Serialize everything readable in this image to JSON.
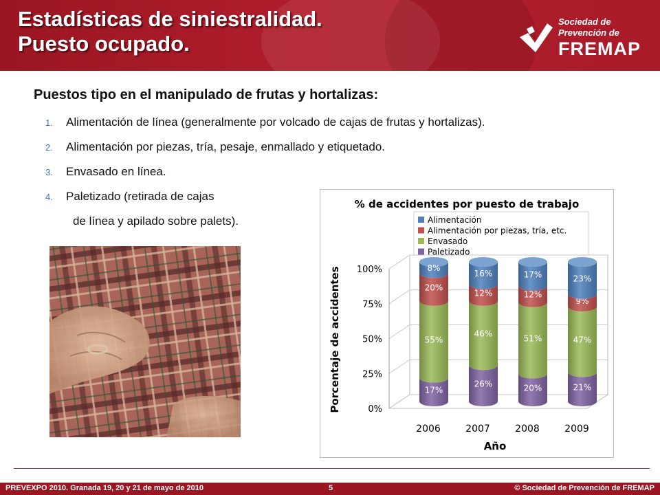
{
  "header": {
    "title_line1": "Estadísticas de siniestralidad.",
    "title_line2": "Puesto ocupado.",
    "logo_line1": "Sociedad de",
    "logo_line2": "Prevención de",
    "logo_line3": "FREMAP",
    "logo_icon": "fremap-check-mark-icon"
  },
  "content": {
    "subtitle": "Puestos tipo en el manipulado de frutas y hortalizas:",
    "items": [
      {
        "num": "1.",
        "text": "Alimentación de línea (generalmente por volcado de cajas de frutas y hortalizas)."
      },
      {
        "num": "2.",
        "text": "Alimentación por piezas, tría, pesaje, enmallado y etiquetado."
      },
      {
        "num": "3.",
        "text": "Envasado en línea."
      },
      {
        "num": "4.",
        "text": "Paletizado (retirada de cajas"
      }
    ],
    "item4_continuation": "de línea y apilado sobre palets)."
  },
  "chart_data": {
    "type": "bar",
    "stacked": true,
    "style": "3d-cylinder",
    "title": "% de accidentes por puesto de trabajo",
    "xlabel": "Año",
    "ylabel": "Porcentaje de accidentes",
    "categories": [
      "2006",
      "2007",
      "2008",
      "2009"
    ],
    "ylim": [
      0,
      100
    ],
    "yticks": [
      "0%",
      "25%",
      "50%",
      "75%",
      "100%"
    ],
    "legend_position": "top",
    "series": [
      {
        "name": "Paletizado",
        "color": "#8064a2",
        "values": [
          17,
          26,
          20,
          21
        ]
      },
      {
        "name": "Envasado",
        "color": "#9bbb59",
        "values": [
          55,
          46,
          51,
          47
        ]
      },
      {
        "name": "Alimentación por piezas, tría, etc.",
        "color": "#c0504d",
        "values": [
          20,
          12,
          12,
          9
        ]
      },
      {
        "name": "Alimentación",
        "color": "#4f81bd",
        "values": [
          8,
          16,
          17,
          23
        ]
      }
    ],
    "legend_order": [
      "Alimentación",
      "Alimentación por piezas, tría, etc.",
      "Envasado",
      "Paletizado"
    ]
  },
  "footer": {
    "left": "PREVEXPO 2010. Granada 19, 20 y 21 de mayo de 2010",
    "page": "5",
    "right": "© Sociedad de Prevención de FREMAP"
  }
}
